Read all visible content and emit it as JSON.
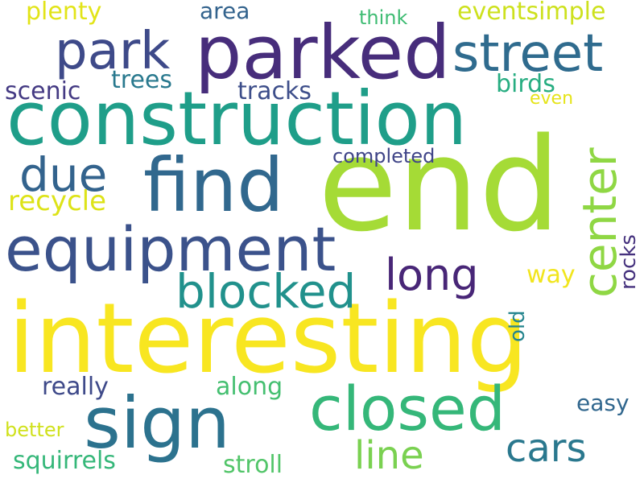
{
  "words": [
    {
      "text": "end",
      "color": "#a5db36",
      "vertical": false
    },
    {
      "text": "interesting",
      "color": "#f8e621",
      "vertical": false
    },
    {
      "text": "construction",
      "color": "#1f9e89",
      "vertical": false
    },
    {
      "text": "parked",
      "color": "#472d7b",
      "vertical": false
    },
    {
      "text": "find",
      "color": "#31688e",
      "vertical": false
    },
    {
      "text": "sign",
      "color": "#2c728e",
      "vertical": false
    },
    {
      "text": "equipment",
      "color": "#3b528b",
      "vertical": false
    },
    {
      "text": "closed",
      "color": "#35b779",
      "vertical": false
    },
    {
      "text": "street",
      "color": "#2f6b8e",
      "vertical": false
    },
    {
      "text": "park",
      "color": "#3e4a89",
      "vertical": false
    },
    {
      "text": "center",
      "color": "#8fd744",
      "vertical": true
    },
    {
      "text": "blocked",
      "color": "#21918c",
      "vertical": false
    },
    {
      "text": "due",
      "color": "#33638d",
      "vertical": false
    },
    {
      "text": "long",
      "color": "#482677",
      "vertical": false
    },
    {
      "text": "cars",
      "color": "#2a788e",
      "vertical": false
    },
    {
      "text": "line",
      "color": "#7ad151",
      "vertical": false
    },
    {
      "text": "recycle",
      "color": "#dde318",
      "vertical": false
    },
    {
      "text": "tracks",
      "color": "#3d4e8a",
      "vertical": false
    },
    {
      "text": "trees",
      "color": "#29798e",
      "vertical": false
    },
    {
      "text": "scenic",
      "color": "#443a83",
      "vertical": false
    },
    {
      "text": "birds",
      "color": "#27ad81",
      "vertical": false
    },
    {
      "text": "eventsimple",
      "color": "#cde11d",
      "vertical": false
    },
    {
      "text": "plenty",
      "color": "#e2e418",
      "vertical": false
    },
    {
      "text": "area",
      "color": "#33638d",
      "vertical": false
    },
    {
      "text": "think",
      "color": "#3fbc73",
      "vertical": false
    },
    {
      "text": "even",
      "color": "#e5e419",
      "vertical": false
    },
    {
      "text": "completed",
      "color": "#404588",
      "vertical": false
    },
    {
      "text": "rocks",
      "color": "#46327e",
      "vertical": true
    },
    {
      "text": "way",
      "color": "#f1e51d",
      "vertical": false
    },
    {
      "text": "old",
      "color": "#25858e",
      "vertical": true
    },
    {
      "text": "really",
      "color": "#3e4989",
      "vertical": false
    },
    {
      "text": "along",
      "color": "#44bf70",
      "vertical": false
    },
    {
      "text": "easy",
      "color": "#31678e",
      "vertical": false
    },
    {
      "text": "better",
      "color": "#d0e11c",
      "vertical": false
    },
    {
      "text": "squirrels",
      "color": "#35b779",
      "vertical": false
    },
    {
      "text": "stroll",
      "color": "#52c569",
      "vertical": false
    }
  ]
}
